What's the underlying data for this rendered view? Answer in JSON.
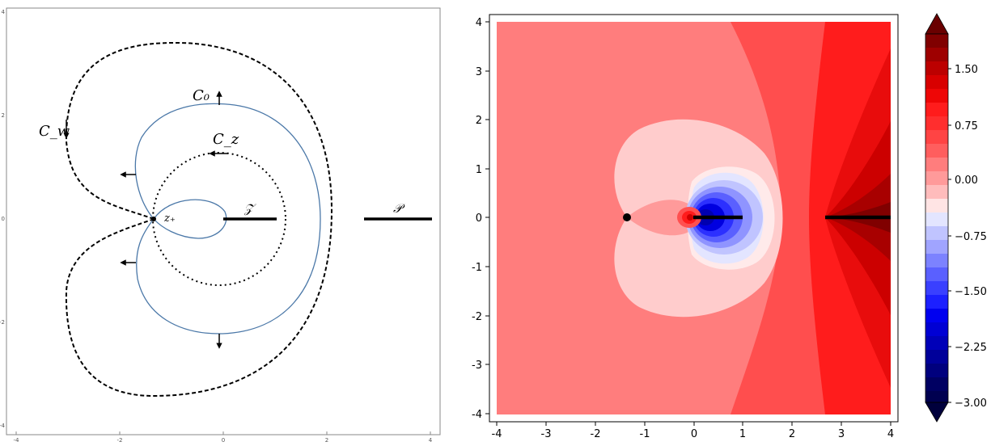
{
  "left_panel": {
    "x_ticks": [
      "-4",
      "-2",
      "0",
      "2",
      "4"
    ],
    "y_ticks": [
      "4",
      "2",
      "0",
      "-2",
      "-4"
    ],
    "labels": {
      "c0": "C₀",
      "cz": "C_z",
      "cw": "C_w",
      "zplus": "z₊",
      "Z": "𝒵",
      "P": "𝒫"
    }
  },
  "right_panel": {
    "x_ticks": [
      "-4",
      "-3",
      "-2",
      "-1",
      "0",
      "1",
      "2",
      "3",
      "4"
    ],
    "y_ticks": [
      "4",
      "3",
      "2",
      "1",
      "0",
      "-1",
      "-2",
      "-3",
      "-4"
    ],
    "colorbar_ticks": [
      "1.50",
      "0.75",
      "0.00",
      "−0.75",
      "−1.50",
      "−2.25",
      "−3.00"
    ],
    "colors": {
      "background": "#ff7d7d",
      "mid_red": "#ff4e4e",
      "strong_red": "#ff1c1c",
      "pale_pink": "#ffcccc",
      "near_white": "#ffeaea",
      "pale_blue": "#e3e5ff",
      "deep_blue": "#0000e0"
    }
  }
}
